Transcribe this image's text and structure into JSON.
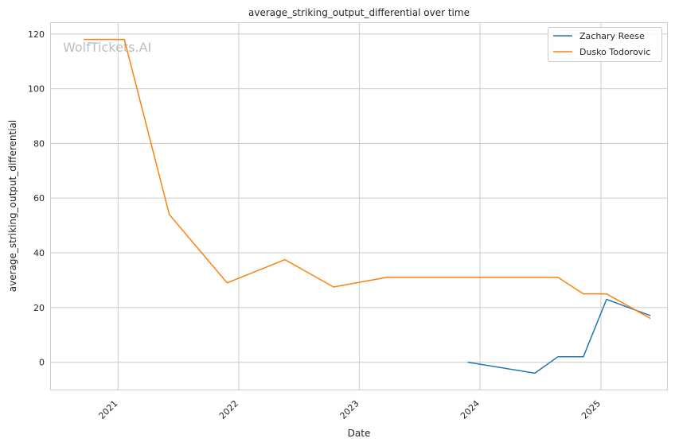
{
  "watermark": "WolfTickets.AI",
  "chart_data": {
    "type": "line",
    "title": "average_striking_output_differential over time",
    "xlabel": "Date",
    "ylabel": "average_striking_output_differential",
    "xlim": [
      "2020-06-12",
      "2025-07-20"
    ],
    "ylim": [
      -10,
      124
    ],
    "x_ticks": [
      "2021",
      "2022",
      "2023",
      "2024",
      "2025"
    ],
    "x_tick_dates": [
      "2021-01-01",
      "2022-01-01",
      "2023-01-01",
      "2024-01-01",
      "2025-01-01"
    ],
    "y_ticks": [
      0,
      20,
      40,
      60,
      80,
      100,
      120
    ],
    "grid": true,
    "legend": "top-right",
    "series": [
      {
        "name": "Zachary Reese",
        "color": "#1f77b4",
        "points": [
          [
            "2023-11-25",
            0
          ],
          [
            "2024-06-15",
            -4
          ],
          [
            "2024-08-24",
            2
          ],
          [
            "2024-11-09",
            2
          ],
          [
            "2025-01-18",
            23
          ],
          [
            "2025-05-31",
            17
          ]
        ]
      },
      {
        "name": "Dusko Todorovic",
        "color": "#ff7f0e",
        "points": [
          [
            "2020-09-19",
            118
          ],
          [
            "2021-01-20",
            118
          ],
          [
            "2021-06-05",
            54
          ],
          [
            "2021-11-27",
            29
          ],
          [
            "2022-05-21",
            37.5
          ],
          [
            "2022-10-15",
            27.5
          ],
          [
            "2023-03-25",
            31
          ],
          [
            "2024-08-24",
            31
          ],
          [
            "2024-11-09",
            25
          ],
          [
            "2025-01-18",
            25
          ],
          [
            "2025-05-31",
            16
          ]
        ]
      }
    ]
  }
}
